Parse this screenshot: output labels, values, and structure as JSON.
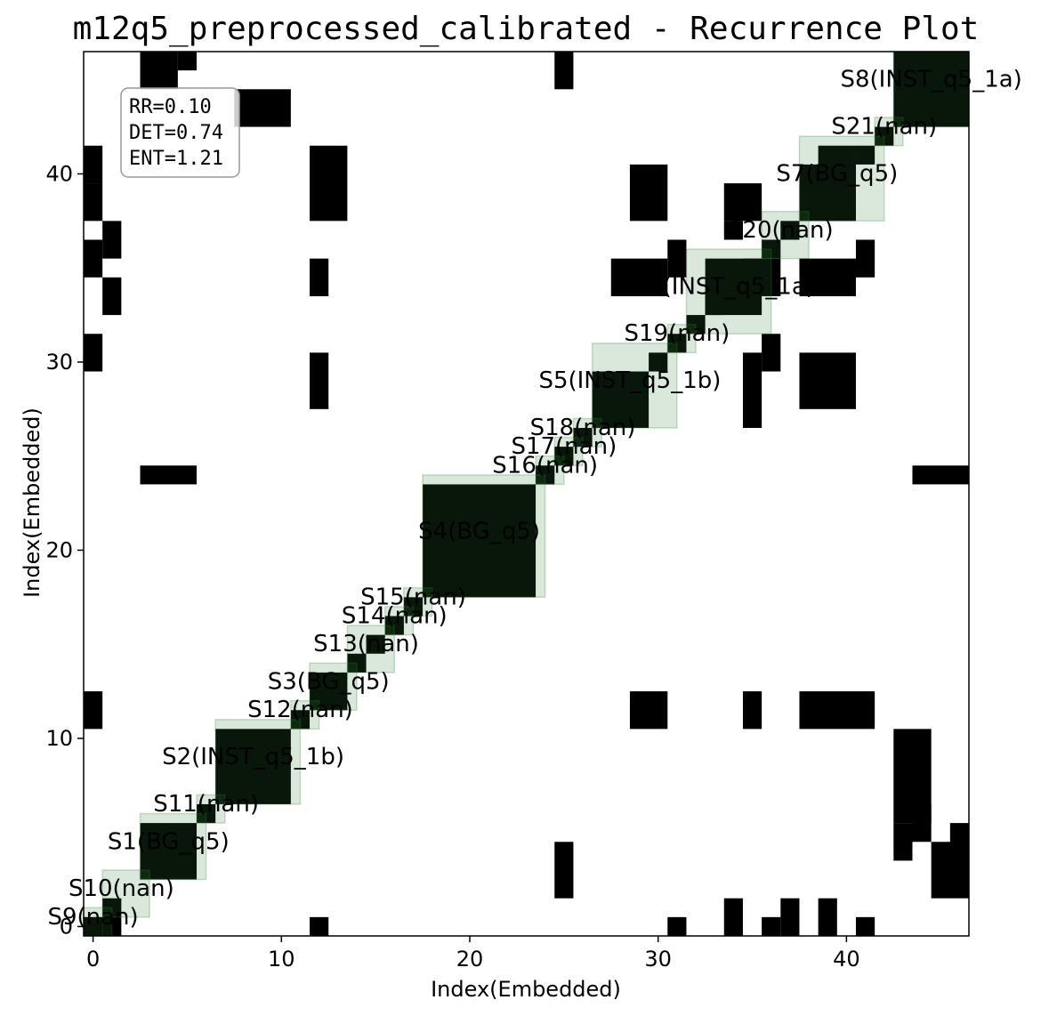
{
  "chart_data": {
    "type": "heatmap",
    "title": "m12q5_preprocessed_calibrated - Recurrence Plot",
    "xlabel": "Index(Embedded)",
    "ylabel": "Index(Embedded)",
    "xlim": [
      -0.5,
      46.5
    ],
    "ylim": [
      -0.5,
      46.5
    ],
    "xticks": [
      0,
      10,
      20,
      30,
      40
    ],
    "yticks": [
      0,
      10,
      20,
      30,
      40
    ],
    "grid": false,
    "stats": {
      "rr": "RR=0.10",
      "det": "DET=0.74",
      "ent": "ENT=1.21"
    },
    "recurrence_blocks": [
      [
        0,
        1,
        0,
        1
      ],
      [
        1,
        2,
        1,
        2
      ],
      [
        1,
        2,
        0,
        1
      ],
      [
        3,
        6,
        3,
        6
      ],
      [
        6,
        7,
        6,
        7
      ],
      [
        7,
        11,
        7,
        11
      ],
      [
        11,
        12,
        11,
        12
      ],
      [
        12,
        14,
        12,
        14
      ],
      [
        14,
        15,
        14,
        15
      ],
      [
        15,
        16,
        15,
        16
      ],
      [
        16,
        17,
        16,
        17
      ],
      [
        17,
        18,
        17,
        18
      ],
      [
        18,
        24,
        18,
        24
      ],
      [
        24,
        25,
        24,
        25
      ],
      [
        25,
        26,
        25,
        26
      ],
      [
        26,
        27,
        26,
        27
      ],
      [
        27,
        30,
        27,
        30
      ],
      [
        30,
        31,
        30,
        31
      ],
      [
        31,
        32,
        31,
        32
      ],
      [
        32,
        33,
        32,
        33
      ],
      [
        33,
        36,
        33,
        36
      ],
      [
        36,
        37,
        36,
        37
      ],
      [
        37,
        38,
        37,
        38
      ],
      [
        38,
        41,
        38,
        41
      ],
      [
        41,
        42,
        41,
        42
      ],
      [
        42,
        43,
        42,
        43
      ],
      [
        43,
        47,
        43,
        47
      ],
      [
        3,
        5,
        45,
        47
      ],
      [
        5,
        6,
        46,
        47
      ],
      [
        25,
        26,
        45,
        47
      ],
      [
        8,
        11,
        43,
        45
      ],
      [
        -1,
        1,
        40,
        42
      ],
      [
        12,
        14,
        38,
        42
      ],
      [
        29,
        31,
        38,
        41
      ],
      [
        34,
        36,
        38,
        40
      ],
      [
        39,
        41,
        40,
        42
      ],
      [
        34,
        35,
        37,
        38
      ],
      [
        0,
        1,
        38,
        40
      ],
      [
        1,
        2,
        36,
        38
      ],
      [
        -1,
        1,
        35,
        37
      ],
      [
        12,
        13,
        34,
        36
      ],
      [
        1,
        2,
        33,
        35
      ],
      [
        -1,
        1,
        30,
        32
      ],
      [
        28,
        31,
        34,
        36
      ],
      [
        31,
        32,
        35,
        37
      ],
      [
        33,
        34,
        33,
        35
      ],
      [
        35,
        37,
        34,
        36
      ],
      [
        38,
        41,
        34,
        36
      ],
      [
        41,
        42,
        35,
        37
      ],
      [
        36,
        37,
        30,
        32
      ],
      [
        35,
        36,
        27,
        31
      ],
      [
        38,
        41,
        28,
        31
      ],
      [
        12,
        13,
        28,
        31
      ],
      [
        3,
        6,
        24,
        25
      ],
      [
        44,
        47,
        24,
        25
      ],
      [
        -1,
        1,
        11,
        13
      ],
      [
        29,
        31,
        11,
        13
      ],
      [
        35,
        36,
        11,
        13
      ],
      [
        38,
        42,
        11,
        13
      ],
      [
        43,
        45,
        6,
        11
      ],
      [
        44,
        45,
        5,
        7
      ],
      [
        43,
        44,
        4,
        6
      ],
      [
        25,
        26,
        2,
        5
      ],
      [
        45,
        47,
        2,
        5
      ],
      [
        46,
        47,
        4,
        6
      ],
      [
        34,
        35,
        0,
        2
      ],
      [
        37,
        38,
        0,
        2
      ],
      [
        39,
        40,
        0,
        2
      ],
      [
        12,
        13,
        -1,
        1
      ],
      [
        31,
        32,
        -1,
        1
      ],
      [
        36,
        37,
        -1,
        1
      ],
      [
        41,
        42,
        -1,
        1
      ],
      [
        0,
        1,
        -1,
        1
      ],
      [
        0,
        1,
        -1,
        0
      ]
    ],
    "segments": [
      {
        "label": "S9(nan)",
        "start": 0,
        "end": 1
      },
      {
        "label": "S10(nan)",
        "start": 1,
        "end": 3
      },
      {
        "label": "S1(BG_q5)",
        "start": 3,
        "end": 6
      },
      {
        "label": "S11(nan)",
        "start": 6,
        "end": 7
      },
      {
        "label": "S2(INST_q5_1b)",
        "start": 7,
        "end": 11
      },
      {
        "label": "S12(nan)",
        "start": 11,
        "end": 12
      },
      {
        "label": "S3(BG_q5)",
        "start": 12,
        "end": 14
      },
      {
        "label": "S13(nan)",
        "start": 14,
        "end": 16
      },
      {
        "label": "S14(nan)",
        "start": 16,
        "end": 17
      },
      {
        "label": "S15(nan)",
        "start": 17,
        "end": 18
      },
      {
        "label": "S4(BG_q5)",
        "start": 18,
        "end": 24
      },
      {
        "label": "S16(nan)",
        "start": 24,
        "end": 25
      },
      {
        "label": "S17(nan)",
        "start": 25,
        "end": 26
      },
      {
        "label": "S18(nan)",
        "start": 26,
        "end": 27
      },
      {
        "label": "S5(INST_q5_1b)",
        "start": 27,
        "end": 31
      },
      {
        "label": "S19(nan)",
        "start": 31,
        "end": 32
      },
      {
        "label": "S6(INST_q5_1a)",
        "start": 32,
        "end": 36
      },
      {
        "label": "S20(nan)",
        "start": 36,
        "end": 38
      },
      {
        "label": "S7(BG_q5)",
        "start": 38,
        "end": 42
      },
      {
        "label": "S21(nan)",
        "start": 42,
        "end": 43
      },
      {
        "label": "S8(INST_q5_1a)",
        "start": 43,
        "end": 47
      }
    ],
    "colors": {
      "recurrence": "#000000",
      "segment_fill": "#2e7d32",
      "segment_alpha": 0.18,
      "background": "#ffffff"
    }
  }
}
